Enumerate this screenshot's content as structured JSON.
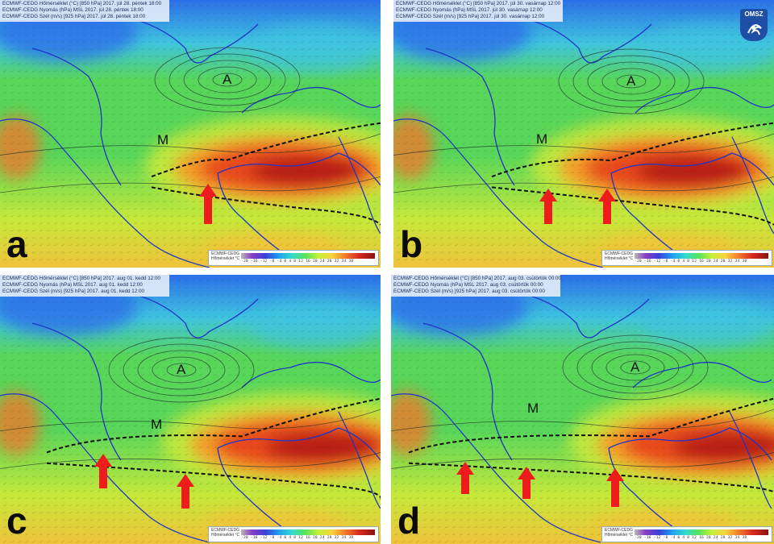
{
  "panels": [
    {
      "id": "a",
      "letter": "a",
      "header": [
        "ECMWF-CEDG Hőmérséklet (°C) [850 hPa] 2017. júl 28. péntek 18:00",
        "ECMWF-CEDG Nyomás (hPa) MSL 2017. júl 28. péntek 18:00",
        "ECMWF-CEDG Szél (m/s) [925 hPa] 2017. júl 28. péntek 18:00"
      ],
      "high_label": "A",
      "low_label": "M"
    },
    {
      "id": "b",
      "letter": "b",
      "header": [
        "ECMWF-CEDG Hőmérséklet (°C) [850 hPa] 2017. júl 30. vasárnap 12:00",
        "ECMWF-CEDG Nyomás (hPa) MSL 2017. júl 30. vasárnap 12:00",
        "ECMWF-CEDG Szél (m/s) [925 hPa] 2017. júl 30. vasárnap 12:00"
      ],
      "high_label": "A",
      "low_label": "M"
    },
    {
      "id": "c",
      "letter": "c",
      "header": [
        "ECMWF-CEDG Hőmérséklet (°C) [850 hPa] 2017. aug 01. kedd 12:00",
        "ECMWF-CEDG Nyomás (hPa) MSL 2017. aug 01. kedd 12:00",
        "ECMWF-CEDG Szél (m/s) [925 hPa] 2017. aug 01. kedd 12:00"
      ],
      "high_label": "A",
      "low_label": "M"
    },
    {
      "id": "d",
      "letter": "d",
      "header": [
        "ECMWF-CEDG Hőmérséklet (°C) [850 hPa] 2017. aug 03. csütörtök 00:00",
        "ECMWF-CEDG Nyomás (hPa) MSL 2017. aug 03. csütörtök 00:00",
        "ECMWF-CEDG Szél (m/s) [925 hPa] 2017. aug 03. csütörtök 00:00"
      ],
      "high_label": "A",
      "low_label": "M"
    }
  ],
  "legend": {
    "title": "ECMWF-CEDG Hőmérséklet °C",
    "ticks": "-20 -16 -12 -8 -4 0 4 8 12 16 20 24 28 32 34 38"
  },
  "logo": {
    "text": "OMSZ"
  },
  "colors": {
    "cold": "#2b6ee8",
    "cool": "#3fc4e0",
    "mild": "#58d65a",
    "warm": "#c6e83a",
    "hot": "#e84a1c",
    "very_hot": "#b81a12",
    "arrow": "#ee1c1c",
    "coast": "#1f35c8"
  }
}
